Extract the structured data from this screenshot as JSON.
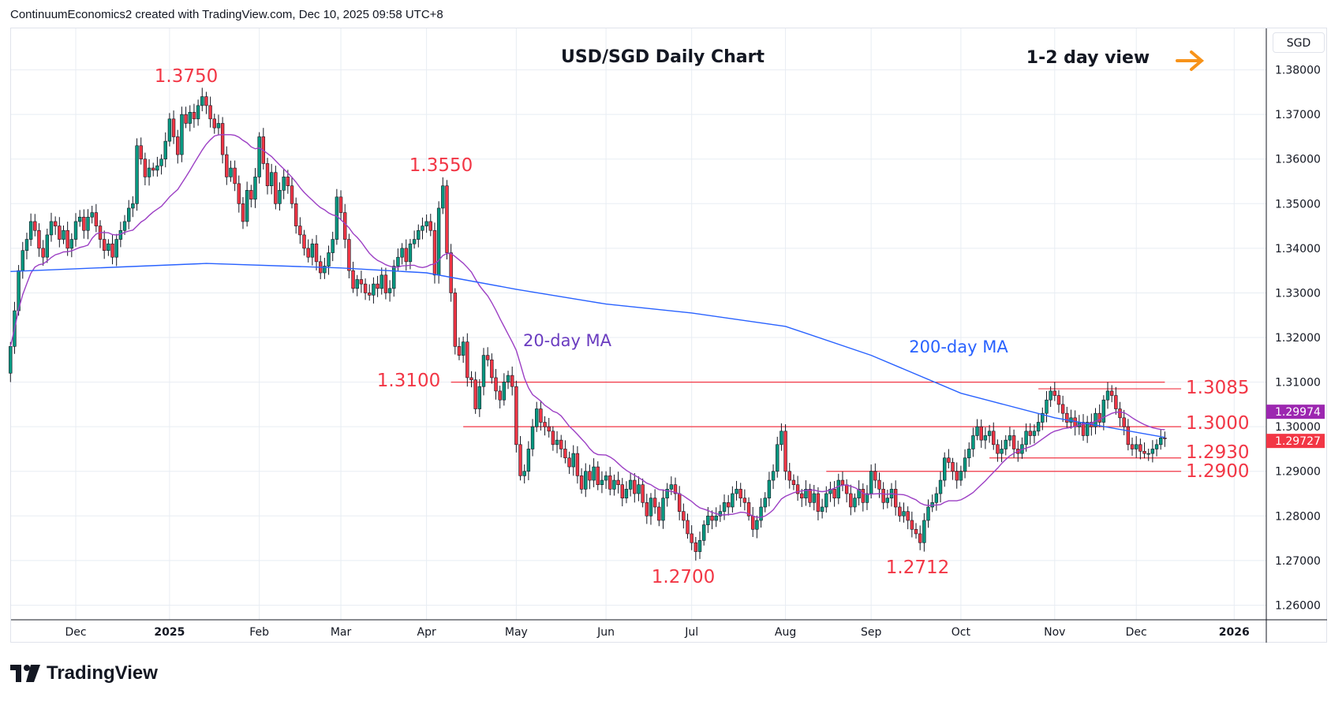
{
  "header": {
    "credit": "ContinuumEconomics2 created with TradingView.com, Dec 10, 2025 09:58 UTC+8"
  },
  "currency_button": "SGD",
  "branding": {
    "logo_text": "TradingView"
  },
  "colors": {
    "up": "#089981",
    "down": "#f23645",
    "ma20": "#9c3fc4",
    "ma200": "#2962ff",
    "levels": "#f23645",
    "arrow": "#f7931a",
    "grid": "#e8edf3"
  },
  "chart_data": {
    "type": "candlestick",
    "title": "USD/SGD Daily Chart",
    "subtitle": "1-2 day view",
    "subtitle_icon": "arrow-right-icon",
    "ylim": [
      1.255,
      1.385
    ],
    "y_ticks": [
      "1.38000",
      "1.37000",
      "1.36000",
      "1.35000",
      "1.34000",
      "1.33000",
      "1.32000",
      "1.31000",
      "1.30000",
      "1.29000",
      "1.28000",
      "1.27000",
      "1.26000"
    ],
    "x_ticks": [
      {
        "label": "Dec",
        "date": "2024-12-02"
      },
      {
        "label": "2025",
        "date": "2025-01-02"
      },
      {
        "label": "Feb",
        "date": "2025-02-03"
      },
      {
        "label": "Mar",
        "date": "2025-03-03"
      },
      {
        "label": "Apr",
        "date": "2025-04-01"
      },
      {
        "label": "May",
        "date": "2025-05-01"
      },
      {
        "label": "Jun",
        "date": "2025-06-02"
      },
      {
        "label": "Jul",
        "date": "2025-07-01"
      },
      {
        "label": "Aug",
        "date": "2025-08-01"
      },
      {
        "label": "Sep",
        "date": "2025-09-01"
      },
      {
        "label": "Oct",
        "date": "2025-10-01"
      },
      {
        "label": "Nov",
        "date": "2025-11-03"
      },
      {
        "label": "Dec",
        "date": "2025-12-01"
      },
      {
        "label": "2026",
        "date": "2026-01-02"
      }
    ],
    "candles_by_month": [
      {
        "month": "2024-11",
        "closes": [
          1.318,
          1.326,
          1.335,
          1.3395,
          1.342,
          1.346,
          1.344,
          1.34,
          1.338,
          1.343,
          1.346,
          1.345,
          1.342,
          1.344,
          1.34,
          1.342
        ]
      },
      {
        "month": "2024-12",
        "closes": [
          1.346,
          1.347,
          1.344,
          1.347,
          1.348,
          1.345,
          1.342,
          1.3395,
          1.341,
          1.338,
          1.342,
          1.344,
          1.346,
          1.349,
          1.35,
          1.363,
          1.36,
          1.356,
          1.358,
          1.3575,
          1.3585,
          1.36
        ]
      },
      {
        "month": "2025-01",
        "closes": [
          1.364,
          1.369,
          1.365,
          1.361,
          1.37,
          1.368,
          1.3705,
          1.369,
          1.372,
          1.374,
          1.372,
          1.369,
          1.367,
          1.368,
          1.361,
          1.356,
          1.358,
          1.3545,
          1.35,
          1.346,
          1.353,
          1.351,
          1.356
        ]
      },
      {
        "month": "2025-02",
        "closes": [
          1.365,
          1.359,
          1.354,
          1.357,
          1.35,
          1.353,
          1.356,
          1.354,
          1.35,
          1.345,
          1.343,
          1.34,
          1.338,
          1.341,
          1.337,
          1.3345,
          1.336,
          1.339,
          1.342,
          1.3515
        ]
      },
      {
        "month": "2025-03",
        "closes": [
          1.348,
          1.342,
          1.335,
          1.331,
          1.333,
          1.332,
          1.33,
          1.3295,
          1.332,
          1.331,
          1.334,
          1.33,
          1.331,
          1.336,
          1.338,
          1.34,
          1.337,
          1.341,
          1.342,
          1.344,
          1.345
        ]
      },
      {
        "month": "2025-04",
        "closes": [
          1.346,
          1.344,
          1.334,
          1.349,
          1.354,
          1.339,
          1.33,
          1.318,
          1.316,
          1.319,
          1.311,
          1.3105,
          1.304,
          1.309,
          1.316,
          1.315,
          1.311,
          1.308,
          1.306,
          1.31,
          1.3115,
          1.309
        ]
      },
      {
        "month": "2025-05",
        "closes": [
          1.296,
          1.289,
          1.29,
          1.295,
          1.3,
          1.304,
          1.301,
          1.3,
          1.299,
          1.296,
          1.297,
          1.295,
          1.293,
          1.291,
          1.294,
          1.289,
          1.286,
          1.29,
          1.288,
          1.291,
          1.287,
          1.288
        ]
      },
      {
        "month": "2025-06",
        "closes": [
          1.289,
          1.286,
          1.288,
          1.287,
          1.284,
          1.286,
          1.288,
          1.285,
          1.287,
          1.283,
          1.28,
          1.284,
          1.282,
          1.279,
          1.284,
          1.286,
          1.287,
          1.285,
          1.281,
          1.279,
          1.276
        ]
      },
      {
        "month": "2025-07",
        "closes": [
          1.274,
          1.272,
          1.2745,
          1.278,
          1.28,
          1.279,
          1.28,
          1.281,
          1.283,
          1.282,
          1.285,
          1.286,
          1.284,
          1.283,
          1.28,
          1.277,
          1.279,
          1.282,
          1.284,
          1.288,
          1.29,
          1.296,
          1.299
        ]
      },
      {
        "month": "2025-08",
        "closes": [
          1.29,
          1.288,
          1.287,
          1.285,
          1.284,
          1.286,
          1.283,
          1.285,
          1.281,
          1.282,
          1.285,
          1.286,
          1.284,
          1.288,
          1.287,
          1.285,
          1.282,
          1.284,
          1.286,
          1.283,
          1.285
        ]
      },
      {
        "month": "2025-09",
        "closes": [
          1.29,
          1.288,
          1.286,
          1.283,
          1.284,
          1.286,
          1.282,
          1.28,
          1.281,
          1.279,
          1.277,
          1.276,
          1.274,
          1.279,
          1.282,
          1.283,
          1.285,
          1.288,
          1.293,
          1.292,
          1.29,
          1.288
        ]
      },
      {
        "month": "2025-10",
        "closes": [
          1.29,
          1.293,
          1.295,
          1.298,
          1.3,
          1.297,
          1.298,
          1.299,
          1.296,
          1.294,
          1.295,
          1.297,
          1.298,
          1.295,
          1.294,
          1.296,
          1.299,
          1.298,
          1.299,
          1.301,
          1.303,
          1.306,
          1.308
        ]
      },
      {
        "month": "2025-11",
        "closes": [
          1.307,
          1.305,
          1.303,
          1.301,
          1.302,
          1.3,
          1.301,
          1.298,
          1.301,
          1.3,
          1.303,
          1.301,
          1.306,
          1.308,
          1.307,
          1.304,
          1.302,
          1.3,
          1.296,
          1.295
        ]
      },
      {
        "month": "2025-12",
        "closes": [
          1.296,
          1.2945,
          1.294,
          1.294,
          1.295,
          1.296,
          1.2975,
          1.2973
        ]
      }
    ],
    "ma200_points": [
      {
        "date": "2024-11-08",
        "value": 1.3348
      },
      {
        "date": "2025-01-15",
        "value": 1.3366
      },
      {
        "date": "2025-03-03",
        "value": 1.3356
      },
      {
        "date": "2025-04-01",
        "value": 1.3345
      },
      {
        "date": "2025-05-01",
        "value": 1.3308
      },
      {
        "date": "2025-06-02",
        "value": 1.3275
      },
      {
        "date": "2025-07-01",
        "value": 1.3255
      },
      {
        "date": "2025-08-01",
        "value": 1.3225
      },
      {
        "date": "2025-09-01",
        "value": 1.316
      },
      {
        "date": "2025-10-01",
        "value": 1.3075
      },
      {
        "date": "2025-11-03",
        "value": 1.302
      },
      {
        "date": "2025-12-10",
        "value": 1.2976
      }
    ],
    "series_labels": {
      "ma20": "20-day MA",
      "ma200": "200-day MA"
    },
    "levels": [
      {
        "value": 1.31,
        "from": "2025-04-09"
      },
      {
        "value": 1.3085,
        "from": "2025-10-28"
      },
      {
        "value": 1.3,
        "from": "2025-04-14"
      },
      {
        "value": 1.293,
        "from": "2025-10-10"
      },
      {
        "value": 1.29,
        "from": "2025-08-15"
      }
    ],
    "annotations": {
      "high_jan": "1.3750",
      "high_apr": "1.3550",
      "level_1310": "1.3100",
      "level_13085": "1.3085",
      "level_1300": "1.3000",
      "level_1293": "1.2930",
      "level_1290": "1.2900",
      "low_jul": "1.2700",
      "low_sep": "1.2712"
    },
    "price_tags": {
      "ma20": "1.29974",
      "last": "1.29727"
    }
  }
}
